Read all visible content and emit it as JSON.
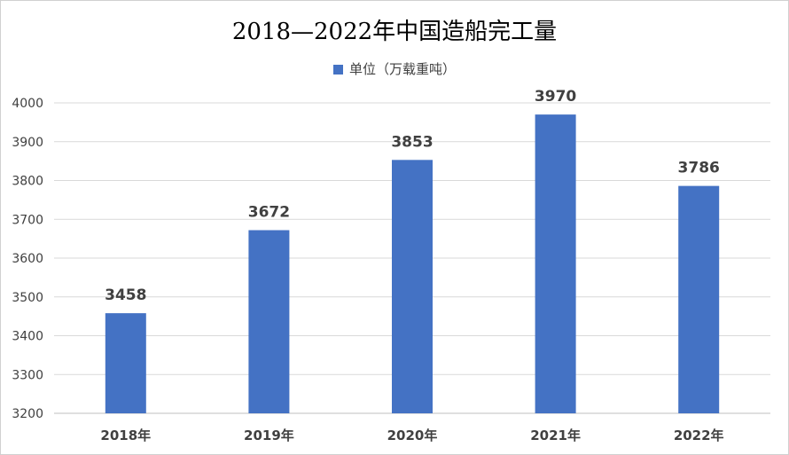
{
  "chart_data": {
    "type": "bar",
    "title": "2018—2022年中国造船完工量",
    "categories": [
      "2018年",
      "2019年",
      "2020年",
      "2021年",
      "2022年"
    ],
    "series": [
      {
        "name": "单位（万载重吨）",
        "values": [
          3458,
          3672,
          3853,
          3970,
          3786
        ]
      }
    ],
    "ylim": [
      3200,
      4000
    ],
    "yticks": [
      3200,
      3300,
      3400,
      3500,
      3600,
      3700,
      3800,
      3900,
      4000
    ],
    "grid": true,
    "legend_position": "top",
    "data_labels": true,
    "bar_color": "#4472c4"
  }
}
